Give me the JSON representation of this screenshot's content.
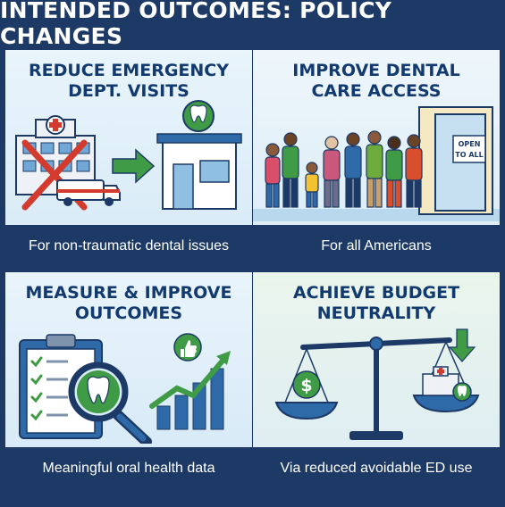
{
  "title": "INTENDED OUTCOMES: POLICY CHANGES",
  "panels": [
    {
      "heading_line1": "REDUCE EMERGENCY",
      "heading_line2": "DEPT. VISITS",
      "caption": "For non-traumatic dental issues",
      "icon": "hospital-to-dental-office-icon"
    },
    {
      "heading_line1": "IMPROVE DENTAL",
      "heading_line2": "CARE ACCESS",
      "caption": "For all Americans",
      "icon": "people-entering-door-icon",
      "sign_line1": "OPEN",
      "sign_line2": "TO ALL"
    },
    {
      "heading_line1": "MEASURE & IMPROVE",
      "heading_line2": "OUTCOMES",
      "caption": "Meaningful oral health data",
      "icon": "clipboard-magnifier-chart-icon"
    },
    {
      "heading_line1": "ACHIEVE BUDGET",
      "heading_line2": "NEUTRALITY",
      "caption": "Via reduced avoidable ED use",
      "icon": "balance-scale-icon"
    }
  ],
  "colors": {
    "navy": "#1d3a66",
    "heading": "#123a6e",
    "green": "#3f9b45",
    "red": "#d23b2e"
  }
}
